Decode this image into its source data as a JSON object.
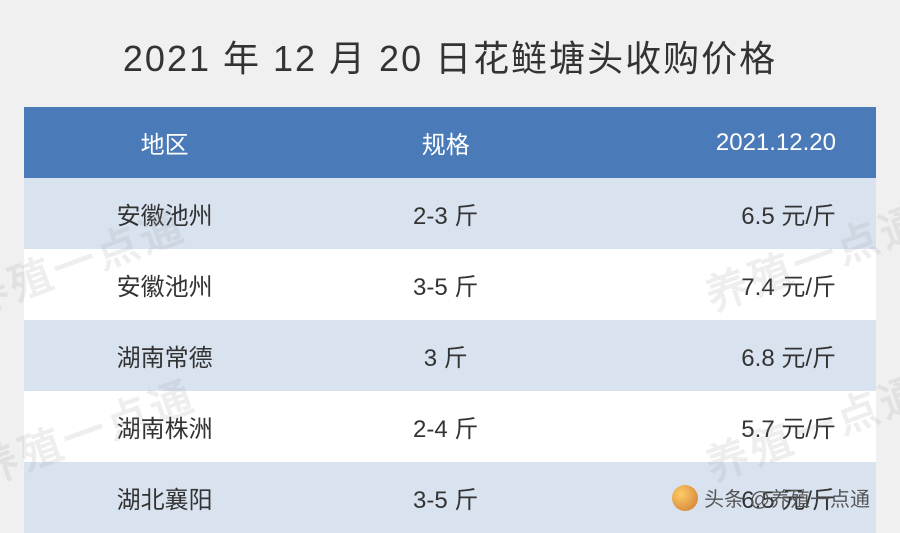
{
  "title": "2021 年 12 月 20 日花鲢塘头收购价格",
  "table": {
    "columns": [
      "地区",
      "规格",
      "2021.12.20"
    ],
    "rows": [
      {
        "region": "安徽池州",
        "spec": "2-3 斤",
        "price": "6.5 元/斤"
      },
      {
        "region": "安徽池州",
        "spec": "3-5 斤",
        "price": "7.4 元/斤"
      },
      {
        "region": "湖南常德",
        "spec": "3 斤",
        "price": "6.8 元/斤"
      },
      {
        "region": "湖南株洲",
        "spec": "2-4 斤",
        "price": "5.7 元/斤"
      },
      {
        "region": "湖北襄阳",
        "spec": "3-5 斤",
        "price": "6.5 元/斤"
      }
    ],
    "header_bg": "#4a7ab8",
    "header_fg": "#ffffff",
    "row_odd_bg": "#d9e3f0",
    "row_even_bg": "#ffffff",
    "text_color": "#333333",
    "title_fontsize": 36,
    "cell_fontsize": 24
  },
  "watermark": "养殖一点通",
  "attribution": "头条 @养殖一点通"
}
